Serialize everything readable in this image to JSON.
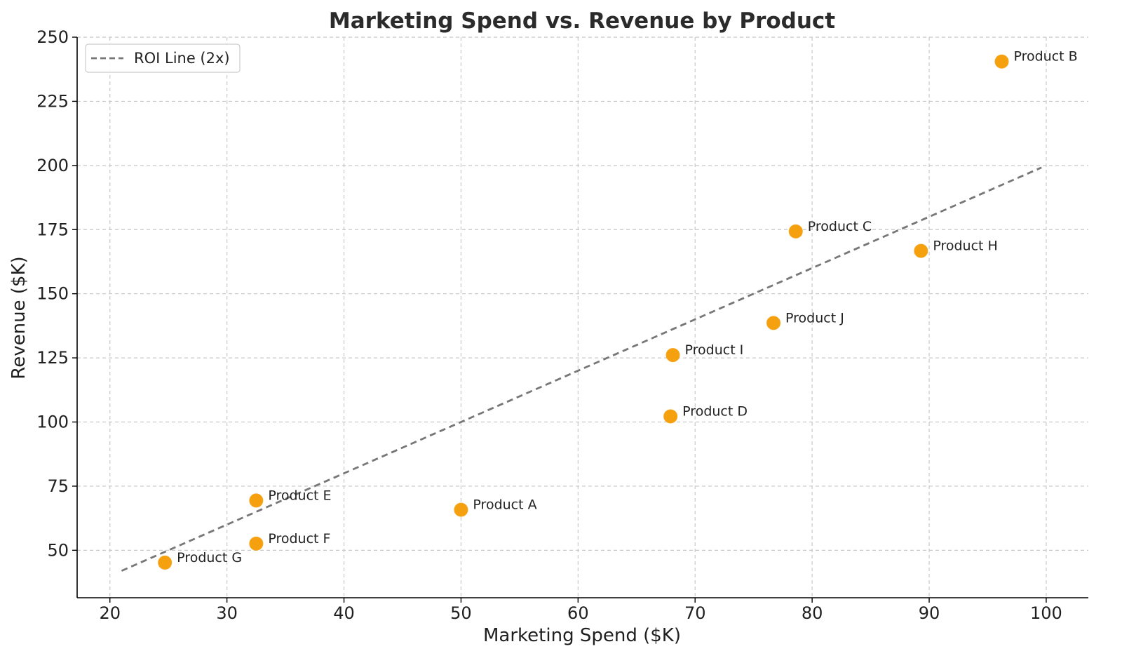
{
  "chart_data": {
    "type": "scatter",
    "title": "Marketing Spend vs. Revenue by Product",
    "xlabel": "Marketing Spend ($K)",
    "ylabel": "Revenue ($K)",
    "xlim": [
      17.2,
      103.6
    ],
    "ylim": [
      31.5,
      250
    ],
    "xticks": [
      20,
      30,
      40,
      50,
      60,
      70,
      80,
      90,
      100
    ],
    "yticks": [
      50,
      75,
      100,
      125,
      150,
      175,
      200,
      225,
      250
    ],
    "grid": true,
    "legend": {
      "placement": "top-left",
      "entries": [
        {
          "label": "ROI Line (2x)",
          "style": "dashed",
          "color": "#777777"
        }
      ]
    },
    "reference_line": {
      "name": "ROI Line (2x)",
      "slope": 2,
      "x_range": [
        21,
        99.6
      ],
      "color": "#777777"
    },
    "points": [
      {
        "label": "Product A",
        "x": 50.0,
        "y": 65.8
      },
      {
        "label": "Product B",
        "x": 96.2,
        "y": 240.5
      },
      {
        "label": "Product C",
        "x": 78.6,
        "y": 174.3
      },
      {
        "label": "Product D",
        "x": 67.9,
        "y": 102.2
      },
      {
        "label": "Product E",
        "x": 32.5,
        "y": 69.4
      },
      {
        "label": "Product F",
        "x": 32.5,
        "y": 52.6
      },
      {
        "label": "Product G",
        "x": 24.7,
        "y": 45.2
      },
      {
        "label": "Product H",
        "x": 89.3,
        "y": 166.7
      },
      {
        "label": "Product I",
        "x": 68.1,
        "y": 126.1
      },
      {
        "label": "Product J",
        "x": 76.7,
        "y": 138.6
      }
    ],
    "point_color": "#f5a00f"
  }
}
